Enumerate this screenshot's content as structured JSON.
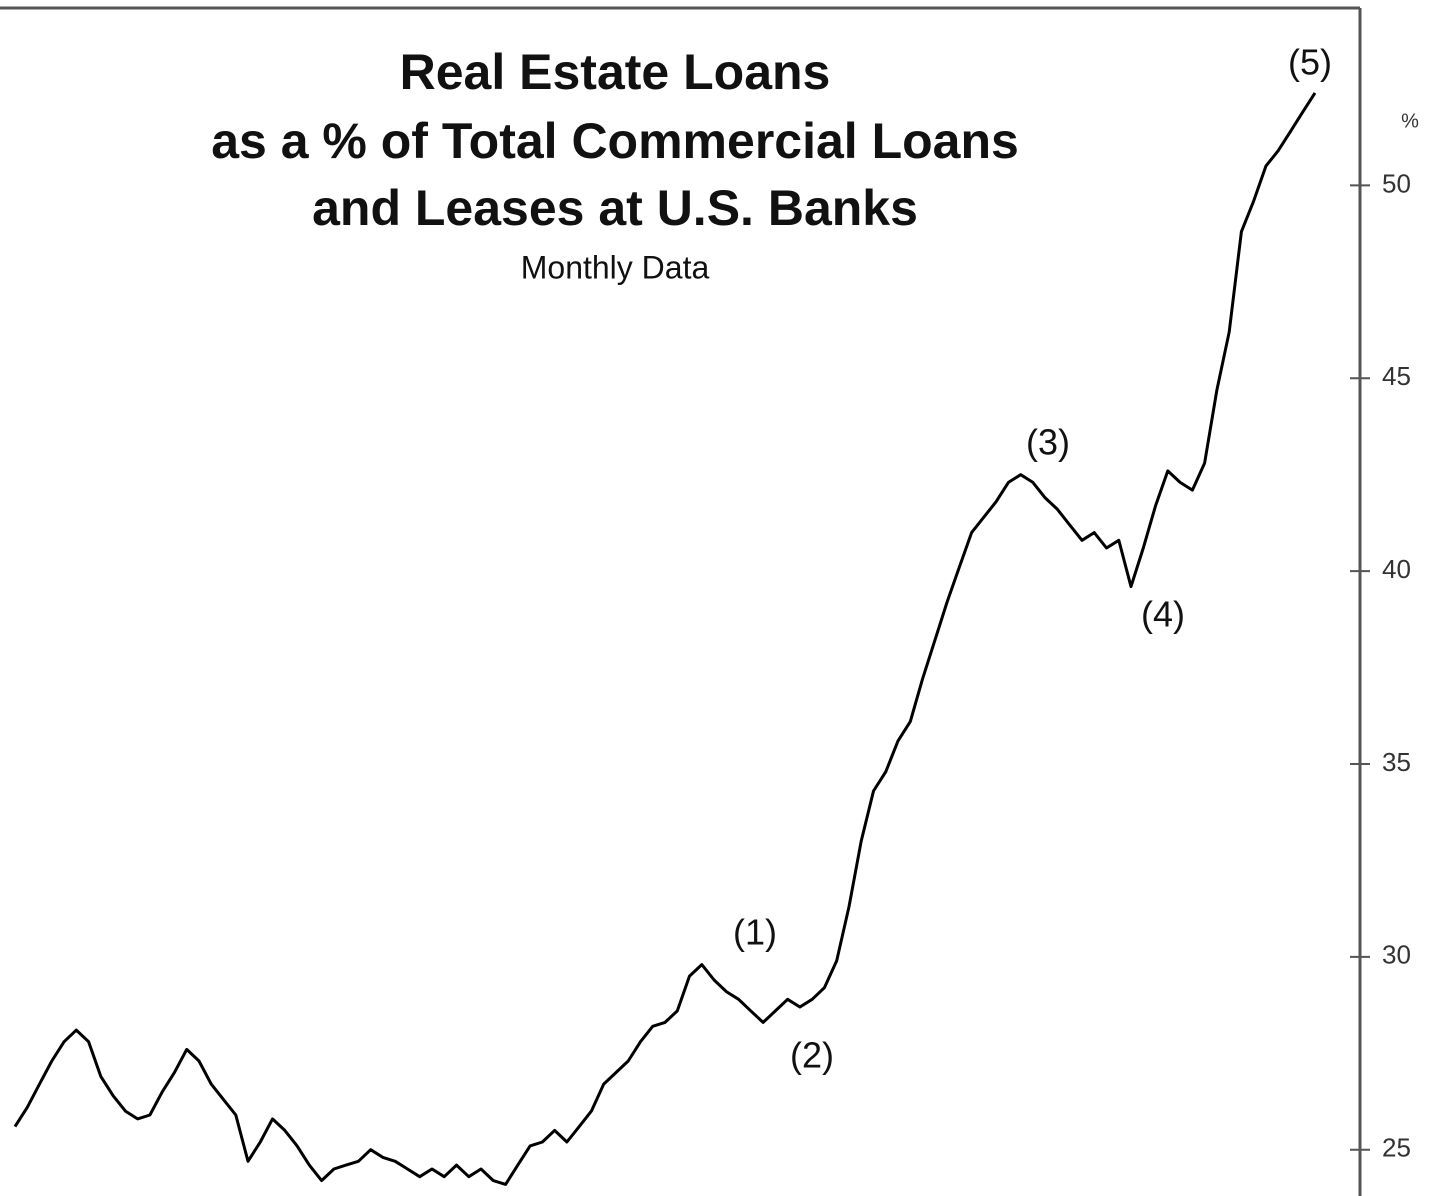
{
  "chart_data": {
    "type": "line",
    "title": [
      "Real Estate Loans",
      "as a % of Total Commercial Loans",
      "and Leases at U.S. Banks"
    ],
    "subtitle": "Monthly Data",
    "y_unit": "%",
    "annotations": [
      "(1)",
      "(2)",
      "(3)",
      "(4)",
      "(5)"
    ],
    "color": "#000000",
    "values": [
      25.6,
      26.1,
      26.7,
      27.3,
      27.8,
      28.1,
      27.8,
      26.9,
      26.4,
      26.0,
      25.8,
      25.9,
      26.5,
      27.0,
      27.6,
      27.3,
      26.7,
      26.3,
      25.9,
      24.7,
      25.2,
      25.8,
      25.5,
      25.1,
      24.6,
      24.2,
      24.5,
      24.6,
      24.7,
      25.0,
      24.8,
      24.7,
      24.5,
      24.3,
      24.5,
      24.3,
      24.6,
      24.3,
      24.5,
      24.2,
      24.1,
      24.6,
      25.1,
      25.2,
      25.5,
      25.2,
      25.6,
      26.0,
      26.7,
      27.0,
      27.3,
      27.8,
      28.2,
      28.3,
      28.6,
      29.5,
      29.8,
      29.4,
      29.1,
      28.9,
      28.6,
      28.3,
      28.6,
      28.9,
      28.7,
      28.9,
      29.2,
      29.9,
      31.3,
      33.0,
      34.3,
      34.8,
      35.6,
      36.1,
      37.2,
      38.2,
      39.2,
      40.1,
      41.0,
      41.4,
      41.8,
      42.3,
      42.5,
      42.3,
      41.9,
      41.6,
      41.2,
      40.8,
      41.0,
      40.6,
      40.8,
      39.6,
      40.6,
      41.7,
      42.6,
      42.3,
      42.1,
      42.8,
      44.7,
      46.2,
      48.8,
      49.6,
      50.5,
      50.9,
      51.4,
      51.9,
      52.4
    ],
    "ylim": [
      23.8,
      54.6
    ],
    "yticks": [
      25,
      30,
      35,
      40,
      45,
      50
    ]
  }
}
